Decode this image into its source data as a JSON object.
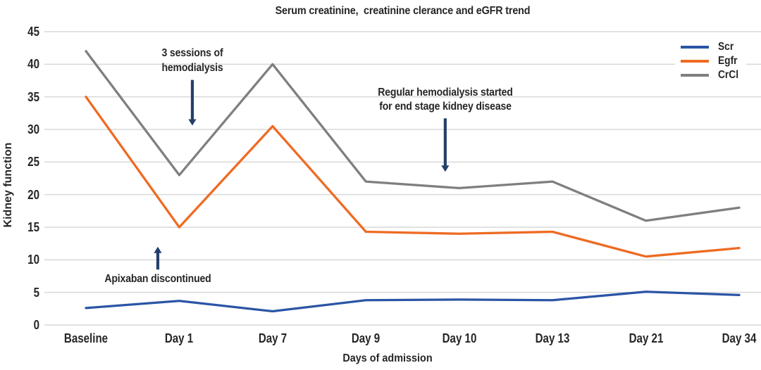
{
  "chart_data": {
    "type": "line",
    "title": "Serum creatinine,  creatinine clerance and eGFR trend",
    "xlabel": "Days of admission",
    "ylabel": "Kidney function",
    "categories": [
      "Baseline",
      "Day 1",
      "Day 7",
      "Day 9",
      "Day 10",
      "Day 13",
      "Day 21",
      "Day 34"
    ],
    "yticks": [
      0,
      5,
      10,
      15,
      20,
      25,
      30,
      35,
      40,
      45
    ],
    "ylim": [
      0,
      45
    ],
    "grid": true,
    "legend_position": "top-right",
    "series": [
      {
        "name": "Scr",
        "color": "#2A55A6",
        "values": [
          2.6,
          3.7,
          2.1,
          3.8,
          3.9,
          3.8,
          5.1,
          4.6
        ]
      },
      {
        "name": "Egfr",
        "color": "#EE6B23",
        "values": [
          35,
          15,
          30.5,
          14.3,
          14,
          14.3,
          10.5,
          11.8
        ]
      },
      {
        "name": "CrCl",
        "color": "#7F7F7F",
        "values": [
          42,
          23,
          40,
          22,
          21,
          22,
          16,
          18
        ]
      }
    ],
    "annotations": [
      {
        "id": "hemodialysis-sessions",
        "lines": [
          "3 sessions of",
          "hemodialysis"
        ],
        "arrow_direction": "down",
        "x_index": 1.14,
        "text_top_value": 42.7,
        "arrow_from_value": 37.6,
        "arrow_to_value": 30.6
      },
      {
        "id": "regular-hemodialysis",
        "lines": [
          "Regular hemodialysis started",
          "for end stage kidney disease"
        ],
        "arrow_direction": "down",
        "x_index": 3.85,
        "text_top_value": 36.7,
        "arrow_from_value": 31.7,
        "arrow_to_value": 23.5
      },
      {
        "id": "apixaban-discontinued",
        "lines": [
          "Apixaban discontinued"
        ],
        "arrow_direction": "up",
        "x_index": 0.77,
        "text_top_value": 8.1,
        "arrow_from_value": 8.5,
        "arrow_to_value": 12.0
      }
    ],
    "annotation_color": "#243F6B",
    "grid_color": "#D8D8D8",
    "text_color": "#262626"
  }
}
